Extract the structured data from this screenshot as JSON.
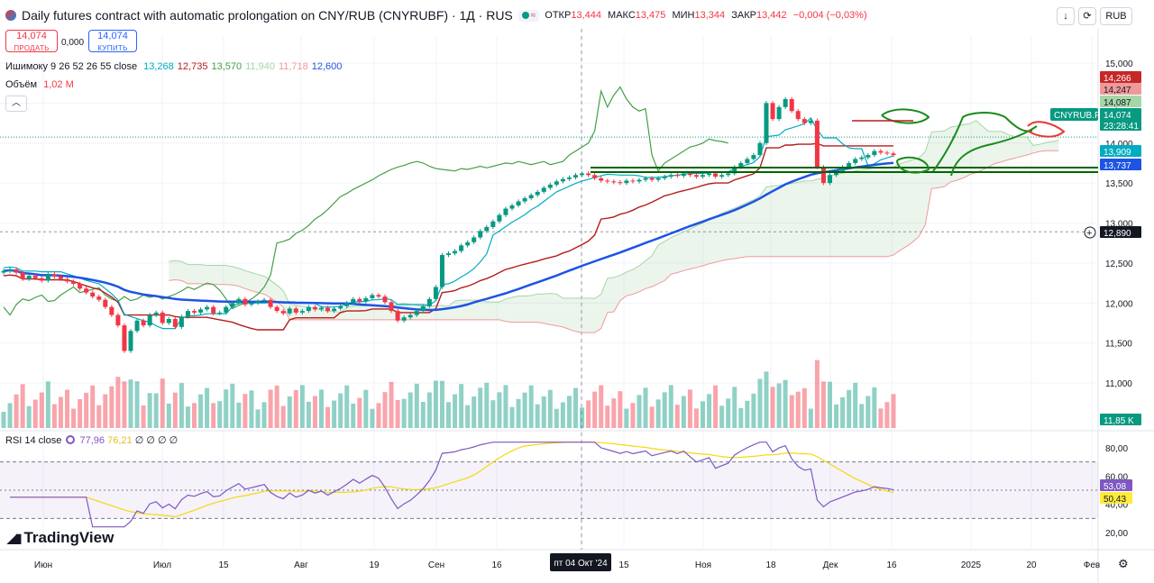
{
  "header": {
    "title": "Daily futures contract with automatic prolongation on CNY/RUB (CNYRUBF) · 1Д · RUS",
    "open_label": "ОТКР",
    "open": "13,444",
    "high_label": "МАКС",
    "high": "13,475",
    "low_label": "МИН",
    "low": "13,344",
    "close_label": "ЗАКР",
    "close": "13,442",
    "change": "−0,004 (−0,03%)"
  },
  "trade": {
    "sell_price": "14,074",
    "sell_label": "ПРОДАТЬ",
    "spread": "0,000",
    "buy_price": "14,074",
    "buy_label": "КУПИТЬ"
  },
  "indicators": {
    "ichimoku_label": "Ишимоку 9 26 52 26 55 close",
    "ichimoku_values": [
      "13,268",
      "12,735",
      "13,570",
      "11,940",
      "11,718",
      "12,600"
    ],
    "ichimoku_colors": [
      "#00acc1",
      "#b71c1c",
      "#43a047",
      "#a5d6a7",
      "#ef9a9a",
      "#1e53e5"
    ],
    "volume_label": "Объём",
    "volume_value": "1,02 М",
    "rsi_label": "RSI 14 close",
    "rsi_value": "77,96",
    "rsi_ma": "76,21",
    "rsi_extra": "∅ ∅ ∅ ∅"
  },
  "controls": {
    "currency": "RUB",
    "down_icon": "arrow-down-icon",
    "sync_icon": "sync-icon",
    "collapse_icon": "chevron-up-icon",
    "settings_icon": "gear-icon",
    "crosshair_icon": "plus-circle-icon"
  },
  "logo": "TradingView",
  "price_scale": {
    "ticks": [
      "15,000",
      "14,500",
      "14,000",
      "13,500",
      "13,000",
      "12,500",
      "12,000",
      "11,500",
      "11,000"
    ],
    "badges": [
      {
        "text": "14,266",
        "bg": "#c62828",
        "fg": "#ffffff"
      },
      {
        "text": "14,247",
        "bg": "#ef9a9a",
        "fg": "#131722"
      },
      {
        "text": "14,087",
        "bg": "#a5d6a7",
        "fg": "#131722"
      },
      {
        "text": "14,074",
        "bg": "#089981",
        "fg": "#ffffff"
      },
      {
        "text": "23:28:41",
        "bg": "#089981",
        "fg": "#ffffff"
      },
      {
        "text": "13,909",
        "bg": "#00acc1",
        "fg": "#ffffff"
      },
      {
        "text": "13,737",
        "bg": "#1e53e5",
        "fg": "#ffffff"
      },
      {
        "text": "12,890",
        "bg": "#131722",
        "fg": "#ffffff"
      },
      {
        "text": "11,85 K",
        "bg": "#089981",
        "fg": "#ffffff"
      }
    ],
    "symbol_tag": "CNYRUB.P"
  },
  "rsi_scale": {
    "ticks": [
      "80,00",
      "60,00",
      "40,00",
      "20,00"
    ],
    "badges": [
      {
        "text": "53,08",
        "bg": "#7e57c2",
        "fg": "#ffffff"
      },
      {
        "text": "50,43",
        "bg": "#ffeb3b",
        "fg": "#131722"
      }
    ]
  },
  "time_axis": {
    "labels": [
      "Июн",
      "Июл",
      "15",
      "Авг",
      "19",
      "Сен",
      "16",
      "15",
      "Ноя",
      "18",
      "Дек",
      "16",
      "2025",
      "20",
      "Фев"
    ],
    "cursor_label": "пт 04 Окт '24"
  },
  "chart_data": {
    "type": "candlestick",
    "instrument": "CNYRUBF",
    "timeframe": "1Д",
    "ylim": [
      11000,
      15000
    ],
    "rsi_levels": [
      70,
      30
    ],
    "rsi_ylim": [
      20,
      80
    ],
    "horizontal_level": 12890,
    "closes": [
      12400,
      12420,
      12380,
      12300,
      12340,
      12310,
      12280,
      12360,
      12330,
      12300,
      12270,
      12240,
      12180,
      12130,
      12080,
      12040,
      11950,
      11850,
      11720,
      11400,
      11650,
      11780,
      11720,
      11850,
      11880,
      11750,
      11800,
      11700,
      11830,
      11900,
      11880,
      11920,
      11950,
      11870,
      11880,
      11950,
      12000,
      12050,
      11980,
      12000,
      12020,
      12040,
      11950,
      11900,
      11870,
      11930,
      11880,
      11900,
      11950,
      11920,
      11940,
      11900,
      11930,
      11960,
      12000,
      12050,
      12020,
      12060,
      12100,
      12080,
      12010,
      11900,
      11780,
      11820,
      11850,
      11900,
      11960,
      12050,
      12200,
      12600,
      12620,
      12650,
      12720,
      12760,
      12820,
      12900,
      12950,
      13020,
      13100,
      13180,
      13220,
      13270,
      13310,
      13350,
      13390,
      13440,
      13480,
      13520,
      13550,
      13570,
      13600,
      13620,
      13600,
      13560,
      13530,
      13520,
      13510,
      13500,
      13530,
      13520,
      13540,
      13560,
      13540,
      13560,
      13580,
      13600,
      13590,
      13620,
      13600,
      13580,
      13600,
      13620,
      13580,
      13600,
      13620,
      13700,
      13750,
      13800,
      13850,
      14000,
      14500,
      14300,
      14450,
      14550,
      14400,
      14300,
      14250,
      14280,
      13700,
      13500,
      13600,
      13650,
      13700,
      13750,
      13800,
      13820,
      13850,
      13900,
      13880,
      13870,
      13850
    ],
    "ichimoku": {
      "tenkan": 13268,
      "kijun": 12735,
      "senkou_a": 13570,
      "senkou_b": 11940,
      "chikou": 11718,
      "ma55": 12600
    },
    "volume_last": "1,02 М",
    "rsi_current": 53.08,
    "rsi_ma_current": 50.43
  }
}
